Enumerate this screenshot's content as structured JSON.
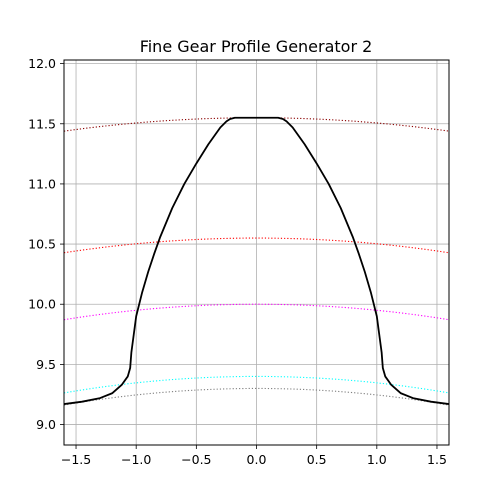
{
  "chart_data": {
    "type": "line",
    "title": "Fine Gear Profile Generator 2",
    "xlabel": "",
    "ylabel": "",
    "xlim": [
      -1.6,
      1.6
    ],
    "ylim": [
      8.83,
      12.03
    ],
    "xticks": [
      -1.5,
      -1.0,
      -0.5,
      0.0,
      0.5,
      1.0,
      1.5
    ],
    "xtick_labels": [
      "−1.5",
      "−1.0",
      "−0.5",
      "0.0",
      "0.5",
      "1.0",
      "1.5"
    ],
    "yticks": [
      9.0,
      9.5,
      10.0,
      10.5,
      11.0,
      11.5,
      12.0
    ],
    "ytick_labels": [
      "9.0",
      "9.5",
      "10.0",
      "10.5",
      "11.0",
      "11.5",
      "12.0"
    ],
    "grid": true,
    "reference_circles": [
      {
        "radius": 11.55,
        "color": "#8b0000",
        "style": "dotted"
      },
      {
        "radius": 10.55,
        "color": "#ff0000",
        "style": "dotted"
      },
      {
        "radius": 10.0,
        "color": "#ff00ff",
        "style": "dotted"
      },
      {
        "radius": 9.4,
        "color": "#00ffff",
        "style": "dotted"
      },
      {
        "radius": 9.3,
        "color": "#808080",
        "style": "dotted"
      }
    ],
    "profile": {
      "color": "#000000",
      "x": [
        -1.6,
        -1.45,
        -1.3,
        -1.2,
        -1.12,
        -1.07,
        -1.05,
        -1.04,
        -1.02,
        -1.0,
        -0.95,
        -0.9,
        -0.85,
        -0.8,
        -0.7,
        -0.6,
        -0.5,
        -0.4,
        -0.3,
        -0.25,
        -0.22,
        -0.18,
        -0.12,
        0.0,
        0.12,
        0.18,
        0.22,
        0.25,
        0.3,
        0.4,
        0.5,
        0.6,
        0.7,
        0.8,
        0.85,
        0.9,
        0.95,
        1.0,
        1.02,
        1.04,
        1.05,
        1.07,
        1.12,
        1.2,
        1.3,
        1.45,
        1.6
      ],
      "y": [
        9.17,
        9.19,
        9.22,
        9.26,
        9.33,
        9.4,
        9.47,
        9.6,
        9.75,
        9.9,
        10.1,
        10.27,
        10.42,
        10.56,
        10.8,
        11.0,
        11.17,
        11.33,
        11.47,
        11.52,
        11.54,
        11.55,
        11.55,
        11.55,
        11.55,
        11.55,
        11.54,
        11.52,
        11.47,
        11.33,
        11.17,
        11.0,
        10.8,
        10.56,
        10.42,
        10.27,
        10.1,
        9.9,
        9.75,
        9.6,
        9.47,
        9.4,
        9.33,
        9.26,
        9.22,
        9.19,
        9.17
      ]
    }
  }
}
